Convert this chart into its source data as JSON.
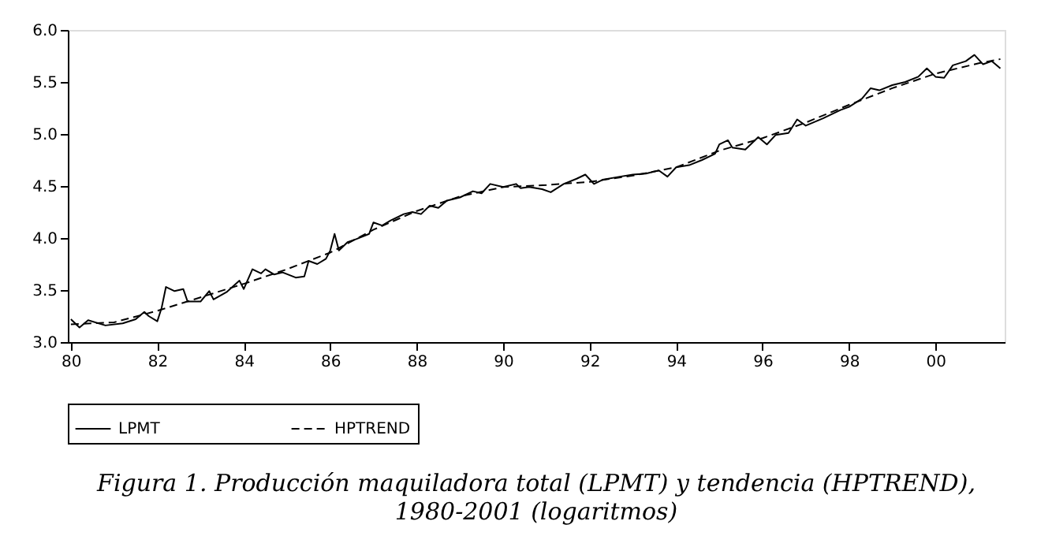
{
  "chart_data": {
    "type": "line",
    "title": "Figura 1. Producción maquiladora total (LPMT) y tendencia (HPTREND),",
    "subtitle": "1980-2001 (logaritmos)",
    "xlim": [
      1979.93,
      2001.6
    ],
    "ylim": [
      3.0,
      6.0
    ],
    "xticks": [
      {
        "value": 1980,
        "label": "80"
      },
      {
        "value": 1982,
        "label": "82"
      },
      {
        "value": 1984,
        "label": "84"
      },
      {
        "value": 1986,
        "label": "86"
      },
      {
        "value": 1988,
        "label": "88"
      },
      {
        "value": 1990,
        "label": "90"
      },
      {
        "value": 1992,
        "label": "92"
      },
      {
        "value": 1994,
        "label": "94"
      },
      {
        "value": 1996,
        "label": "96"
      },
      {
        "value": 1998,
        "label": "98"
      },
      {
        "value": 2000,
        "label": "00"
      }
    ],
    "yticks": [
      {
        "value": 3.0,
        "label": "3.0"
      },
      {
        "value": 3.5,
        "label": "3.5"
      },
      {
        "value": 4.0,
        "label": "4.0"
      },
      {
        "value": 4.5,
        "label": "4.5"
      },
      {
        "value": 5.0,
        "label": "5.0"
      },
      {
        "value": 5.5,
        "label": "5.5"
      },
      {
        "value": 6.0,
        "label": "6.0"
      }
    ],
    "grid": false,
    "legend": "bottom",
    "marker": "none",
    "series": [
      {
        "name": "LPMT",
        "color": "#000000",
        "line_style": "solid",
        "x": [
          1980.0,
          1980.2,
          1980.4,
          1980.8,
          1981.2,
          1981.5,
          1981.7,
          1981.8,
          1982.0,
          1982.1,
          1982.2,
          1982.4,
          1982.6,
          1982.7,
          1983.0,
          1983.2,
          1983.3,
          1983.6,
          1983.9,
          1984.0,
          1984.2,
          1984.4,
          1984.5,
          1984.7,
          1984.9,
          1985.2,
          1985.4,
          1985.5,
          1985.7,
          1985.9,
          1986.0,
          1986.1,
          1986.2,
          1986.4,
          1986.6,
          1986.9,
          1987.0,
          1987.2,
          1987.4,
          1987.7,
          1987.9,
          1988.1,
          1988.3,
          1988.5,
          1988.7,
          1989.0,
          1989.3,
          1989.5,
          1989.7,
          1990.0,
          1990.3,
          1990.4,
          1990.6,
          1990.9,
          1991.1,
          1991.4,
          1991.7,
          1991.9,
          1992.1,
          1992.3,
          1992.7,
          1993.0,
          1993.3,
          1993.6,
          1993.8,
          1994.0,
          1994.3,
          1994.6,
          1994.9,
          1995.0,
          1995.2,
          1995.3,
          1995.6,
          1995.9,
          1996.1,
          1996.3,
          1996.6,
          1996.8,
          1997.0,
          1997.4,
          1997.8,
          1998.0,
          1998.3,
          1998.5,
          1998.7,
          1999.0,
          1999.3,
          1999.6,
          1999.8,
          2000.0,
          2000.2,
          2000.4,
          2000.7,
          2000.9,
          2001.1,
          2001.3,
          2001.5
        ],
        "values": [
          3.22,
          3.14,
          3.21,
          3.16,
          3.18,
          3.22,
          3.29,
          3.25,
          3.2,
          3.33,
          3.53,
          3.49,
          3.51,
          3.39,
          3.39,
          3.49,
          3.41,
          3.48,
          3.59,
          3.51,
          3.7,
          3.66,
          3.7,
          3.65,
          3.67,
          3.62,
          3.63,
          3.78,
          3.75,
          3.8,
          3.88,
          4.04,
          3.88,
          3.96,
          3.99,
          4.04,
          4.15,
          4.12,
          4.17,
          4.23,
          4.25,
          4.23,
          4.31,
          4.29,
          4.36,
          4.39,
          4.45,
          4.43,
          4.52,
          4.49,
          4.52,
          4.48,
          4.49,
          4.47,
          4.44,
          4.52,
          4.57,
          4.61,
          4.52,
          4.56,
          4.59,
          4.61,
          4.62,
          4.65,
          4.59,
          4.68,
          4.7,
          4.75,
          4.81,
          4.9,
          4.94,
          4.87,
          4.85,
          4.97,
          4.9,
          4.99,
          5.01,
          5.14,
          5.08,
          5.15,
          5.23,
          5.26,
          5.34,
          5.44,
          5.42,
          5.47,
          5.5,
          5.55,
          5.63,
          5.55,
          5.54,
          5.66,
          5.7,
          5.76,
          5.67,
          5.7,
          5.63
        ]
      },
      {
        "name": "HPTREND",
        "color": "#000000",
        "line_style": "dashed",
        "x": [
          1980,
          1981,
          1982,
          1983,
          1984,
          1985,
          1986,
          1987,
          1988,
          1989,
          1990,
          1991,
          1992,
          1993,
          1994,
          1995,
          1996,
          1997,
          1998,
          1999,
          2000,
          2001,
          2001.5
        ],
        "values": [
          3.17,
          3.19,
          3.3,
          3.43,
          3.56,
          3.7,
          3.86,
          4.08,
          4.26,
          4.4,
          4.49,
          4.51,
          4.54,
          4.6,
          4.68,
          4.84,
          4.96,
          5.11,
          5.28,
          5.44,
          5.58,
          5.68,
          5.72
        ]
      }
    ]
  }
}
